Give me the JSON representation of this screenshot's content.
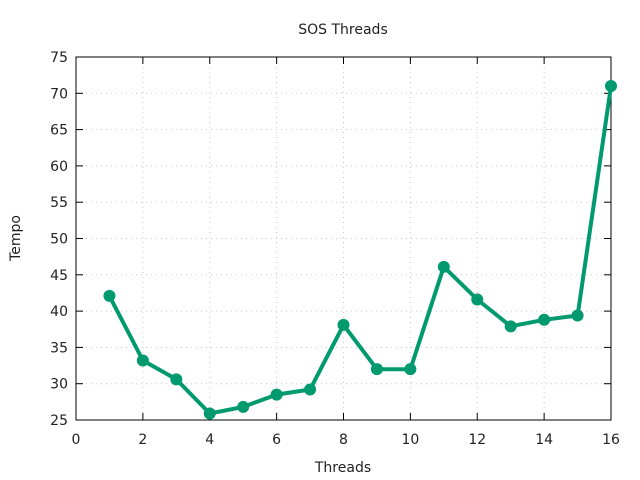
{
  "chart_data": {
    "type": "line",
    "title": "SOS Threads",
    "xlabel": "Threads",
    "ylabel": "Tempo",
    "xlim": [
      0,
      16
    ],
    "ylim": [
      25,
      75
    ],
    "xticks": [
      0,
      2,
      4,
      6,
      8,
      10,
      12,
      14,
      16
    ],
    "yticks": [
      25,
      30,
      35,
      40,
      45,
      50,
      55,
      60,
      65,
      70,
      75
    ],
    "grid": true,
    "series": [
      {
        "color": "#009a6e",
        "x": [
          1,
          2,
          3,
          4,
          5,
          6,
          7,
          8,
          9,
          10,
          11,
          12,
          13,
          14,
          15,
          16
        ],
        "y": [
          42.1,
          33.2,
          30.6,
          25.9,
          26.8,
          28.5,
          29.2,
          38.1,
          32.0,
          32.0,
          46.1,
          41.6,
          37.9,
          38.8,
          39.4,
          71.0
        ]
      }
    ]
  }
}
